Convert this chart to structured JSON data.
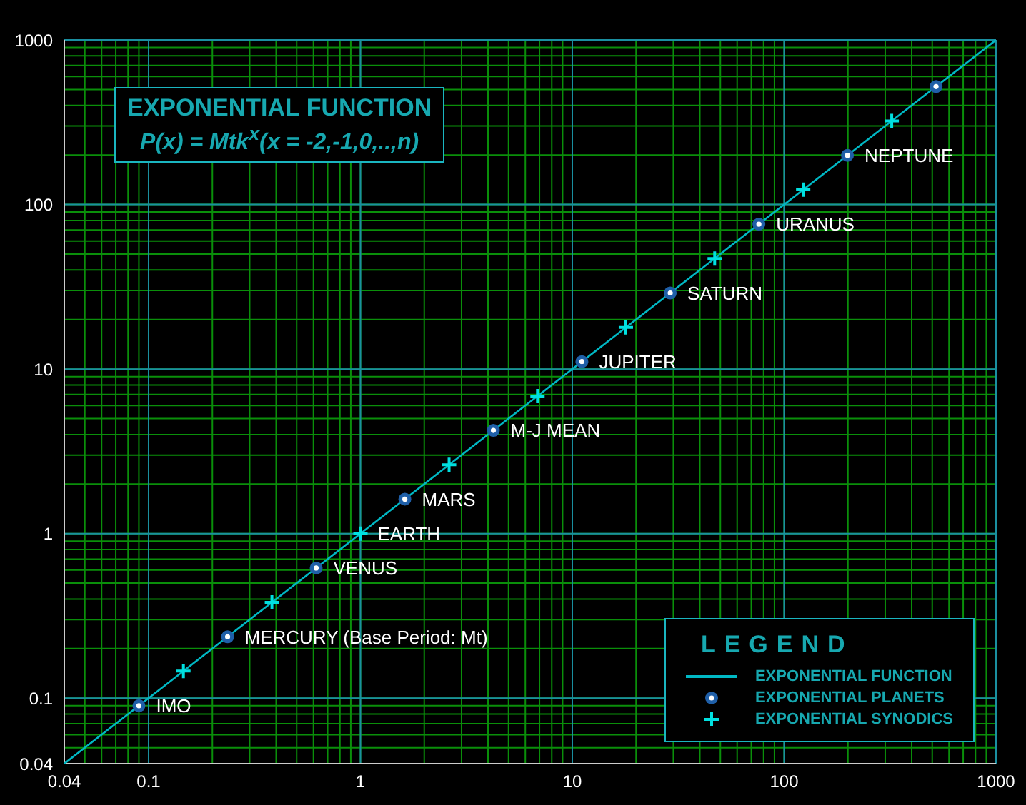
{
  "chart_data": {
    "type": "scatter",
    "title": "EXPONENTIAL FUNCTION",
    "subtitle": "P(x) = Mtk$^{x}$(x = -2,-1,0,..,n)",
    "legend_title": "LEGEND",
    "legend": "bottom right",
    "log": "xy",
    "grid": true,
    "xlim": [
      0.04,
      1000
    ],
    "ylim": [
      0.04,
      1000
    ],
    "xticks": [
      0.04,
      {
        "value": 0.05,
        "label": null
      },
      {
        "value": 0.06,
        "label": null
      },
      {
        "value": 0.07,
        "label": null
      },
      {
        "value": 0.08,
        "label": null
      },
      {
        "value": 0.09,
        "label": null
      },
      0.1,
      {
        "value": 0.2,
        "label": null
      },
      {
        "value": 0.3,
        "label": null
      },
      {
        "value": 0.4,
        "label": null
      },
      {
        "value": 0.5,
        "label": null
      },
      {
        "value": 0.6,
        "label": null
      },
      {
        "value": 0.7,
        "label": null
      },
      {
        "value": 0.8,
        "label": null
      },
      {
        "value": 0.9,
        "label": null
      },
      1,
      {
        "value": 2,
        "label": null
      },
      {
        "value": 3,
        "label": null
      },
      {
        "value": 4,
        "label": null
      },
      {
        "value": 5,
        "label": null
      },
      {
        "value": 6,
        "label": null
      },
      {
        "value": 7,
        "label": null
      },
      {
        "value": 8,
        "label": null
      },
      {
        "value": 9,
        "label": null
      },
      10,
      {
        "value": 20,
        "label": null
      },
      {
        "value": 30,
        "label": null
      },
      {
        "value": 40,
        "label": null
      },
      {
        "value": 50,
        "label": null
      },
      {
        "value": 60,
        "label": null
      },
      {
        "value": 70,
        "label": null
      },
      {
        "value": 80,
        "label": null
      },
      {
        "value": 90,
        "label": null
      },
      100,
      {
        "value": 200,
        "label": null
      },
      {
        "value": 300,
        "label": null
      },
      {
        "value": 400,
        "label": null
      },
      {
        "value": 500,
        "label": null
      },
      {
        "value": 600,
        "label": null
      },
      {
        "value": 700,
        "label": null
      },
      {
        "value": 800,
        "label": null
      },
      {
        "value": 900,
        "label": null
      },
      1000
    ],
    "yticks": [
      0.04,
      {
        "value": 0.05,
        "label": null
      },
      {
        "value": 0.06,
        "label": null
      },
      {
        "value": 0.07,
        "label": null
      },
      {
        "value": 0.08,
        "label": null
      },
      {
        "value": 0.09,
        "label": null
      },
      0.1,
      {
        "value": 0.2,
        "label": null
      },
      {
        "value": 0.3,
        "label": null
      },
      {
        "value": 0.4,
        "label": null
      },
      {
        "value": 0.5,
        "label": null
      },
      {
        "value": 0.6,
        "label": null
      },
      {
        "value": 0.7,
        "label": null
      },
      {
        "value": 0.8,
        "label": null
      },
      {
        "value": 0.9,
        "label": null
      },
      1,
      {
        "value": 2,
        "label": null
      },
      {
        "value": 3,
        "label": null
      },
      {
        "value": 4,
        "label": null
      },
      {
        "value": 5,
        "label": null
      },
      {
        "value": 6,
        "label": null
      },
      {
        "value": 7,
        "label": null
      },
      {
        "value": 8,
        "label": null
      },
      {
        "value": 9,
        "label": null
      },
      10,
      {
        "value": 20,
        "label": null
      },
      {
        "value": 30,
        "label": null
      },
      {
        "value": 40,
        "label": null
      },
      {
        "value": 50,
        "label": null
      },
      {
        "value": 60,
        "label": null
      },
      {
        "value": 70,
        "label": null
      },
      {
        "value": 80,
        "label": null
      },
      {
        "value": 90,
        "label": null
      },
      100,
      {
        "value": 200,
        "label": null
      },
      {
        "value": 300,
        "label": null
      },
      {
        "value": 400,
        "label": null
      },
      {
        "value": 500,
        "label": null
      },
      {
        "value": 600,
        "label": null
      },
      {
        "value": 700,
        "label": null
      },
      {
        "value": 800,
        "label": null
      },
      {
        "value": 900,
        "label": null
      },
      1000
    ],
    "series": [
      {
        "name": "EXPONENTIAL FUNCTION",
        "type": "line",
        "marker": "none",
        "color": "#00b8c4",
        "x": [
          0.04,
          1000
        ],
        "values": [
          0.04,
          1000
        ]
      },
      {
        "name": "EXPONENTIAL PLANETS",
        "type": "scatter",
        "marker": "circle",
        "color": "#1f5fa8",
        "x": [
          0.09,
          0.236,
          0.618,
          1.62,
          4.24,
          11.1,
          29,
          76,
          199,
          521
        ],
        "values": [
          0.09,
          0.236,
          0.618,
          1.62,
          4.24,
          11.1,
          29,
          76,
          199,
          521
        ]
      },
      {
        "name": "EXPONENTIAL SYNODICS",
        "type": "scatter",
        "marker": "cross",
        "color": "#00e0e0",
        "x": [
          0.146,
          0.382,
          1,
          2.62,
          6.85,
          17.9,
          47,
          123,
          322
        ],
        "values": [
          0.146,
          0.382,
          1,
          2.62,
          6.85,
          17.9,
          47,
          123,
          322
        ]
      }
    ],
    "annotations": [
      {
        "text": "IMO",
        "x": 0.09,
        "y": 0.09
      },
      {
        "text": "MERCURY (Base Period: Mt)",
        "x": 0.236,
        "y": 0.236
      },
      {
        "text": "VENUS",
        "x": 0.618,
        "y": 0.618
      },
      {
        "text": "EARTH",
        "x": 1,
        "y": 1
      },
      {
        "text": "MARS",
        "x": 1.62,
        "y": 1.62
      },
      {
        "text": "M-J MEAN",
        "x": 4.24,
        "y": 4.24
      },
      {
        "text": "JUPITER",
        "x": 11.1,
        "y": 11.1
      },
      {
        "text": "SATURN",
        "x": 29,
        "y": 29
      },
      {
        "text": "URANUS",
        "x": 76,
        "y": 76
      },
      {
        "text": "NEPTUNE",
        "x": 199,
        "y": 199
      }
    ]
  }
}
